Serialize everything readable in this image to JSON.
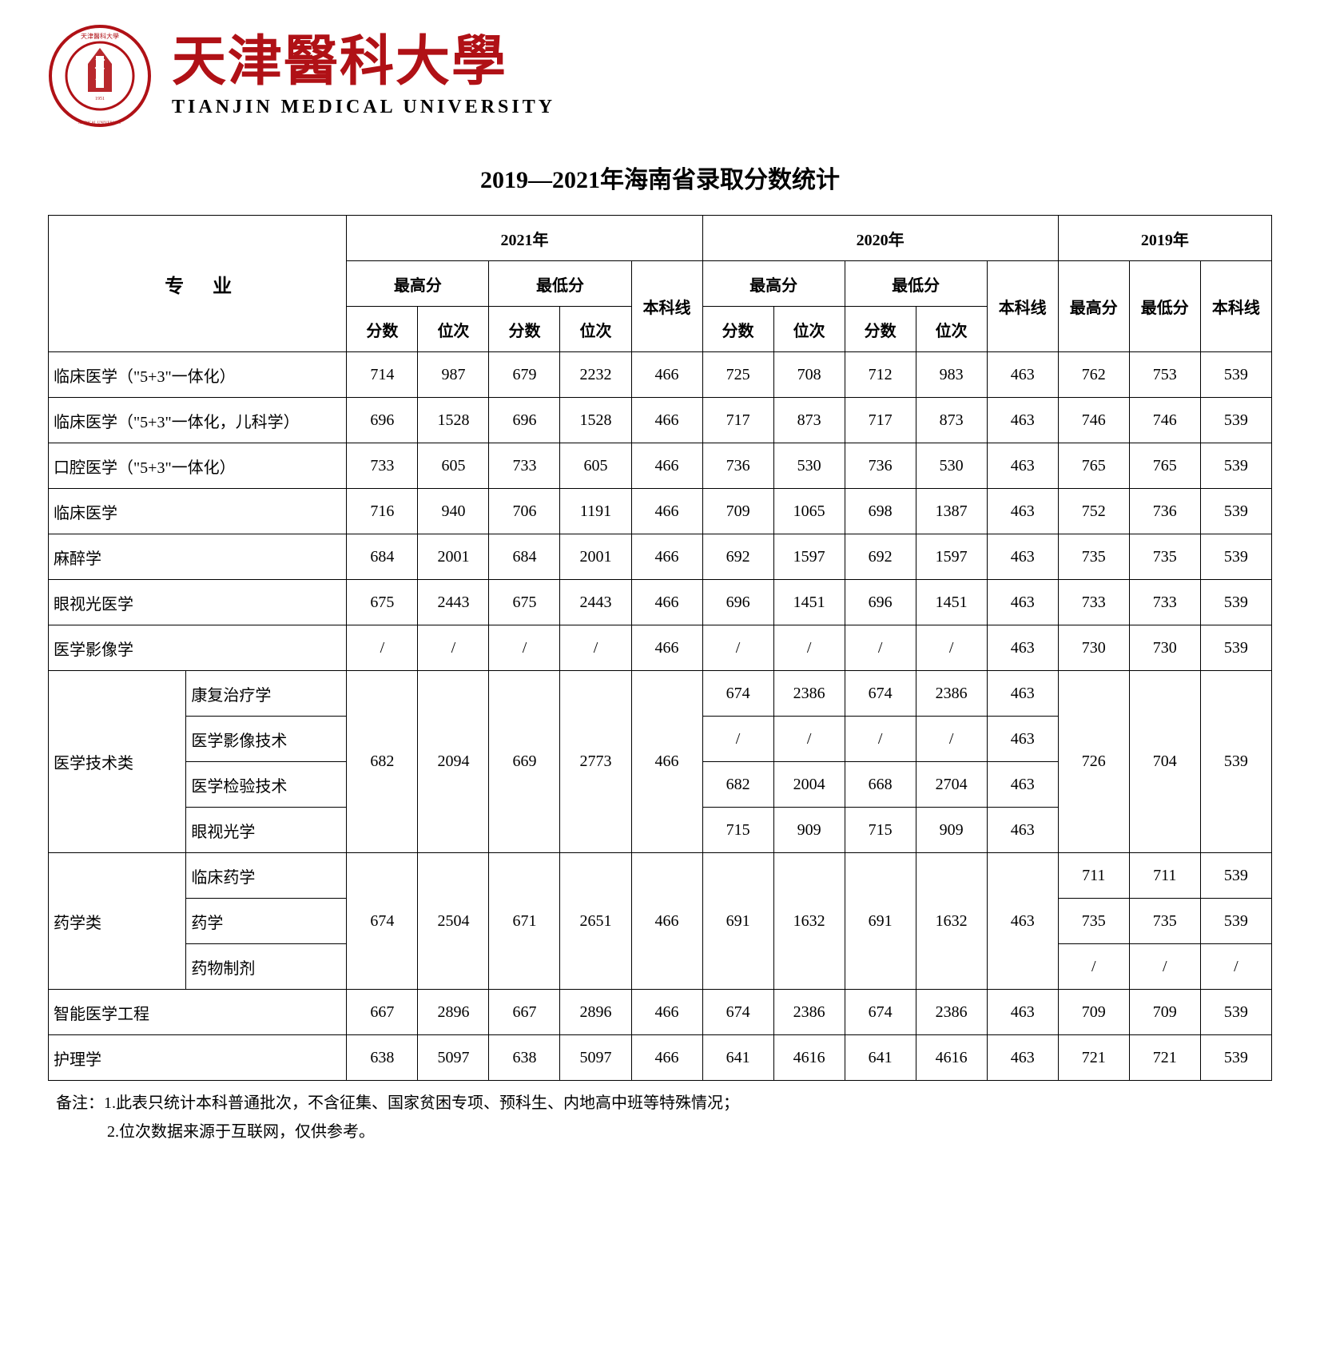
{
  "university": {
    "cn_name": "天津醫科大學",
    "en_name": "TIANJIN MEDICAL UNIVERSITY",
    "logo_color": "#b01116",
    "logo_text_top": "天津醫科大學",
    "logo_text_bottom": "TIANJIN MEDICAL UNIVERSITY",
    "logo_year": "1951"
  },
  "doc_title": "2019—2021年海南省录取分数统计",
  "headers": {
    "major": "专业",
    "y2021": "2021年",
    "y2020": "2020年",
    "y2019": "2019年",
    "max": "最高分",
    "min": "最低分",
    "line": "本科线",
    "score": "分数",
    "rank": "位次"
  },
  "rows_simple": [
    {
      "major": "临床医学（\"5+3\"一体化）",
      "d": [
        "714",
        "987",
        "679",
        "2232",
        "466",
        "725",
        "708",
        "712",
        "983",
        "463",
        "762",
        "753",
        "539"
      ]
    },
    {
      "major": "临床医学（\"5+3\"一体化，儿科学）",
      "d": [
        "696",
        "1528",
        "696",
        "1528",
        "466",
        "717",
        "873",
        "717",
        "873",
        "463",
        "746",
        "746",
        "539"
      ]
    },
    {
      "major": "口腔医学（\"5+3\"一体化）",
      "d": [
        "733",
        "605",
        "733",
        "605",
        "466",
        "736",
        "530",
        "736",
        "530",
        "463",
        "765",
        "765",
        "539"
      ]
    },
    {
      "major": "临床医学",
      "d": [
        "716",
        "940",
        "706",
        "1191",
        "466",
        "709",
        "1065",
        "698",
        "1387",
        "463",
        "752",
        "736",
        "539"
      ]
    },
    {
      "major": "麻醉学",
      "d": [
        "684",
        "2001",
        "684",
        "2001",
        "466",
        "692",
        "1597",
        "692",
        "1597",
        "463",
        "735",
        "735",
        "539"
      ]
    },
    {
      "major": "眼视光医学",
      "d": [
        "675",
        "2443",
        "675",
        "2443",
        "466",
        "696",
        "1451",
        "696",
        "1451",
        "463",
        "733",
        "733",
        "539"
      ]
    },
    {
      "major": "医学影像学",
      "d": [
        "/",
        "/",
        "/",
        "/",
        "466",
        "/",
        "/",
        "/",
        "/",
        "463",
        "730",
        "730",
        "539"
      ]
    }
  ],
  "tech_group": {
    "label": "医学技术类",
    "y2021": [
      "682",
      "2094",
      "669",
      "2773",
      "466"
    ],
    "y2019": [
      "726",
      "704",
      "539"
    ],
    "subs": [
      {
        "name": "康复治疗学",
        "y2020": [
          "674",
          "2386",
          "674",
          "2386",
          "463"
        ]
      },
      {
        "name": "医学影像技术",
        "y2020": [
          "/",
          "/",
          "/",
          "/",
          "463"
        ]
      },
      {
        "name": "医学检验技术",
        "y2020": [
          "682",
          "2004",
          "668",
          "2704",
          "463"
        ]
      },
      {
        "name": "眼视光学",
        "y2020": [
          "715",
          "909",
          "715",
          "909",
          "463"
        ]
      }
    ]
  },
  "pharm_group": {
    "label": "药学类",
    "y2021": [
      "674",
      "2504",
      "671",
      "2651",
      "466"
    ],
    "y2020": [
      "691",
      "1632",
      "691",
      "1632",
      "463"
    ],
    "subs": [
      {
        "name": "临床药学",
        "y2019": [
          "711",
          "711",
          "539"
        ]
      },
      {
        "name": "药学",
        "y2019": [
          "735",
          "735",
          "539"
        ]
      },
      {
        "name": "药物制剂",
        "y2019": [
          "/",
          "/",
          "/"
        ]
      }
    ]
  },
  "rows_tail": [
    {
      "major": "智能医学工程",
      "d": [
        "667",
        "2896",
        "667",
        "2896",
        "466",
        "674",
        "2386",
        "674",
        "2386",
        "463",
        "709",
        "709",
        "539"
      ]
    },
    {
      "major": "护理学",
      "d": [
        "638",
        "5097",
        "638",
        "5097",
        "466",
        "641",
        "4616",
        "641",
        "4616",
        "463",
        "721",
        "721",
        "539"
      ]
    }
  ],
  "notes": {
    "n1": "备注：1.此表只统计本科普通批次，不含征集、国家贫困专项、预科生、内地高中班等特殊情况；",
    "n2": "2.位次数据来源于互联网，仅供参考。"
  },
  "style": {
    "brand_color": "#b01116",
    "border_color": "#000000",
    "font_body": "SimSun",
    "font_title": "KaiTi",
    "cell_fontsize": 20,
    "title_fontsize": 30
  }
}
